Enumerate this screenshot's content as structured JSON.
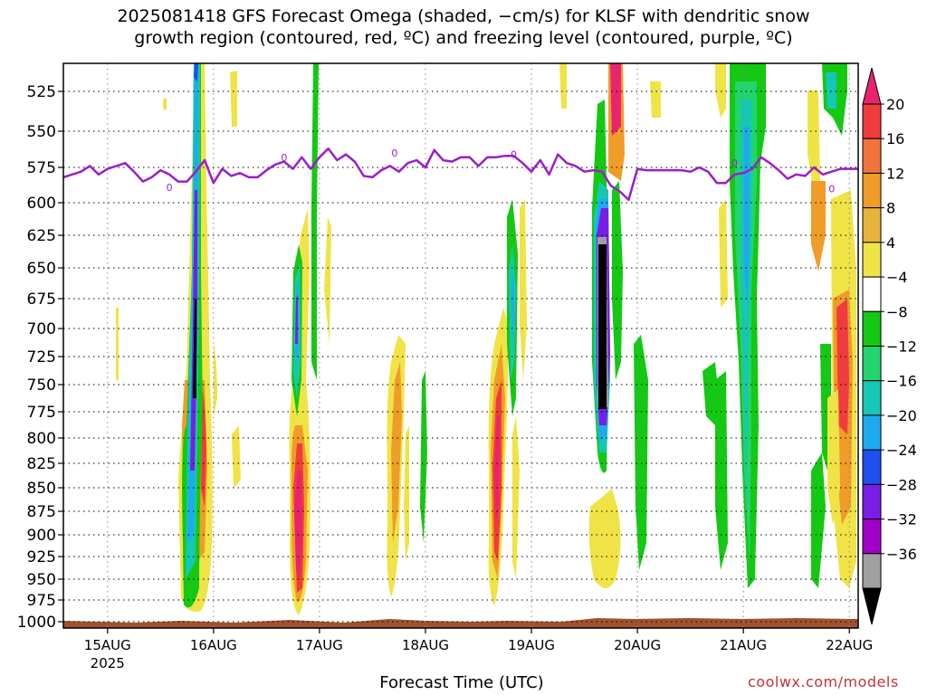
{
  "title_line1": "2025081418 GFS Forecast Omega (shaded, −cm/s) for KLSF with dendritic snow",
  "title_line2": "growth region (contoured, red, ºC) and freezing level (contoured, purple, ºC)",
  "footer_credit": "coolwx.com/models",
  "chart_data": {
    "type": "heatmap",
    "title": "2025081418 GFS Forecast Omega (shaded, −cm/s) for KLSF with dendritic snow growth region (contoured, red, ºC) and freezing level (contoured, purple, ºC)",
    "xlabel": "Forecast Time (UTC)",
    "ylabel": "",
    "y_unit": "hPa",
    "y_ticks": [
      525,
      550,
      575,
      600,
      625,
      650,
      675,
      700,
      725,
      750,
      775,
      800,
      825,
      850,
      875,
      900,
      925,
      950,
      975,
      1000
    ],
    "y_range": [
      1000,
      505
    ],
    "x_ticks": [
      {
        "label": "15AUG",
        "sublabel": "2025",
        "hours": 10
      },
      {
        "label": "16AUG",
        "sublabel": "",
        "hours": 34
      },
      {
        "label": "17AUG",
        "sublabel": "",
        "hours": 58
      },
      {
        "label": "18AUG",
        "sublabel": "",
        "hours": 82
      },
      {
        "label": "19AUG",
        "sublabel": "",
        "hours": 106
      },
      {
        "label": "20AUG",
        "sublabel": "",
        "hours": 130
      },
      {
        "label": "21AUG",
        "sublabel": "",
        "hours": 154
      },
      {
        "label": "22AUG",
        "sublabel": "",
        "hours": 178
      }
    ],
    "x_range_hours": [
      0,
      180
    ],
    "grid": true,
    "colorbar": {
      "labels": [
        "20",
        "16",
        "12",
        "8",
        "4",
        "−4",
        "−8",
        "−12",
        "−16",
        "−20",
        "−24",
        "−28",
        "−32",
        "−36"
      ],
      "colors": [
        "#e8246e",
        "#f03c3c",
        "#f0743c",
        "#f09c28",
        "#e6b43c",
        "#f0e346",
        "#ffffff",
        "#14c814",
        "#23d46e",
        "#14c8b4",
        "#1eaaf0",
        "#1e50f0",
        "#7a1ee6",
        "#a000c8",
        "#a0a0a0",
        "#000000"
      ]
    },
    "freezing_level_label": "0",
    "freezing_level": {
      "hours": [
        0,
        4,
        6,
        8,
        10,
        12,
        14,
        16,
        18,
        20,
        22,
        24,
        26,
        28,
        30,
        32,
        34,
        36,
        38,
        40,
        42,
        44,
        46,
        48,
        50,
        52,
        54,
        56,
        58,
        60,
        62,
        64,
        66,
        68,
        70,
        72,
        74,
        76,
        78,
        80,
        82,
        84,
        86,
        88,
        90,
        92,
        94,
        96,
        98,
        100,
        102,
        104,
        106,
        108,
        110,
        112,
        114,
        116,
        118,
        120,
        122,
        124,
        126,
        128,
        130,
        132,
        134,
        136,
        138,
        140,
        142,
        144,
        146,
        148,
        150,
        152,
        154,
        156,
        158,
        160,
        162,
        164,
        166,
        168,
        170,
        172,
        174,
        176,
        178,
        180
      ],
      "hpa": [
        582,
        578,
        574,
        580,
        576,
        574,
        572,
        578,
        585,
        582,
        577,
        580,
        585,
        585,
        578,
        570,
        586,
        576,
        581,
        579,
        582,
        582,
        577,
        573,
        571,
        576,
        568,
        576,
        568,
        562,
        570,
        566,
        571,
        581,
        582,
        577,
        574,
        578,
        572,
        570,
        575,
        563,
        570,
        571,
        568,
        568,
        574,
        568,
        568,
        567,
        567,
        572,
        578,
        570,
        580,
        566,
        572,
        574,
        578,
        577,
        578,
        588,
        592,
        598,
        576,
        577,
        577,
        577,
        577,
        577,
        578,
        575,
        578,
        586,
        586,
        580,
        579,
        576,
        568,
        572,
        577,
        583,
        580,
        581,
        575,
        580,
        578,
        576,
        576,
        576
      ]
    }
  }
}
